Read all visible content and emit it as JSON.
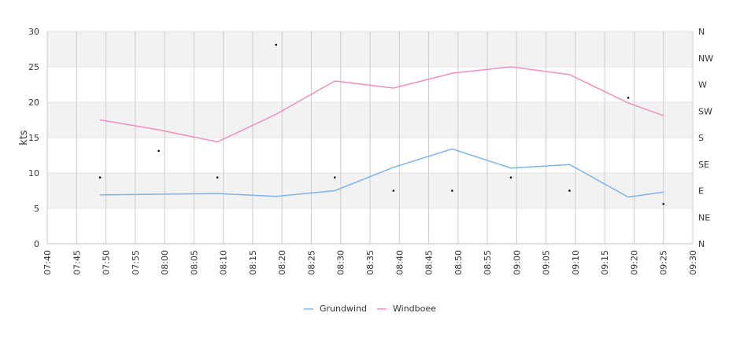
{
  "chart_data": {
    "type": "line",
    "title": "",
    "xlabel": "",
    "ylabel": "kts",
    "ylim": [
      0,
      30
    ],
    "yticks": [
      "0",
      "5",
      "10",
      "15",
      "20",
      "25",
      "30"
    ],
    "xticks": [
      "07:40",
      "07:45",
      "07:50",
      "07:55",
      "08:00",
      "08:05",
      "08:10",
      "08:15",
      "08:20",
      "08:25",
      "08:30",
      "08:35",
      "08:40",
      "08:45",
      "08:50",
      "08:55",
      "09:00",
      "09:05",
      "09:10",
      "09:15",
      "09:20",
      "09:25",
      "09:30"
    ],
    "xlim": [
      "07:40",
      "09:30"
    ],
    "y2ticks": [
      "N",
      "NE",
      "E",
      "SE",
      "S",
      "SW",
      "W",
      "NW",
      "N"
    ],
    "grid": true,
    "legend_position": "bottom",
    "series": [
      {
        "name": "Grundwind",
        "color": "#7cb5ec",
        "x": [
          "07:49",
          "08:09",
          "08:19",
          "08:29",
          "08:39",
          "08:49",
          "08:59",
          "09:09",
          "09:19",
          "09:25"
        ],
        "values": [
          6.9,
          7.1,
          6.7,
          7.5,
          10.8,
          13.4,
          10.7,
          11.2,
          6.6,
          7.3
        ]
      },
      {
        "name": "Windboee",
        "color": "#f08fc0",
        "x": [
          "07:49",
          "07:59",
          "08:09",
          "08:19",
          "08:29",
          "08:39",
          "08:49",
          "08:59",
          "09:09",
          "09:19",
          "09:25"
        ],
        "values": [
          17.5,
          16.1,
          14.4,
          18.3,
          23.0,
          22.0,
          24.1,
          25.0,
          23.9,
          19.9,
          18.1
        ]
      }
    ],
    "direction_series": {
      "color": "#000000",
      "x": [
        "07:49",
        "07:59",
        "08:09",
        "08:19",
        "08:29",
        "08:39",
        "08:49",
        "08:59",
        "09:09",
        "09:19",
        "09:25"
      ],
      "values": [
        "ESE",
        "SSE",
        "ESE",
        "NNW",
        "ESE",
        "E",
        "E",
        "ESE",
        "E",
        "WSW",
        "ENE"
      ]
    }
  }
}
